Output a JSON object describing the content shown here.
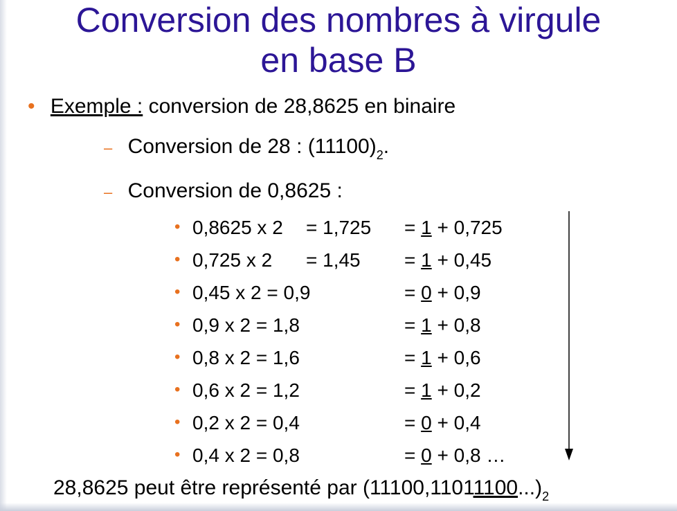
{
  "title": {
    "line1": "Conversion des nombres à virgule",
    "line2": "en base B"
  },
  "example": {
    "label": "Exemple :",
    "text": " conversion de 28,8625 en binaire"
  },
  "step1": {
    "text": "Conversion de 28 : (11100)",
    "sub": "2",
    "end": "."
  },
  "step2": {
    "text": "Conversion de 0,8625 :"
  },
  "rows": [
    {
      "left": "0,8625 x 2",
      "mid": "= 1,725",
      "eq": "= ",
      "bit": "1",
      "rest": " + 0,725"
    },
    {
      "left": "0,725 x 2",
      "mid": "= 1,45",
      "eq": "= ",
      "bit": "1",
      "rest": " + 0,45"
    },
    {
      "left": "0,45 x 2 = 0,9",
      "mid": "",
      "eq": "= ",
      "bit": "0",
      "rest": " + 0,9"
    },
    {
      "left": "0,9 x 2 = 1,8",
      "mid": "",
      "eq": "= ",
      "bit": "1",
      "rest": " + 0,8"
    },
    {
      "left": "0,8 x 2 = 1,6",
      "mid": "",
      "eq": "= ",
      "bit": "1",
      "rest": " + 0,6"
    },
    {
      "left": "0,6 x 2 = 1,2",
      "mid": "",
      "eq": "= ",
      "bit": "1",
      "rest": " + 0,2"
    },
    {
      "left": "0,2 x 2 = 0,4",
      "mid": "",
      "eq": "= ",
      "bit": "0",
      "rest": " + 0,4"
    },
    {
      "left": "0,4 x 2 = 0,8",
      "mid": "",
      "eq": "= ",
      "bit": "0",
      "rest": " + 0,8 …"
    }
  ],
  "conclusion": {
    "prefix": "28,8625 peut être représenté par (11100,1101",
    "underlined": "1100",
    "suffix": "...)",
    "sub": "2"
  },
  "colors": {
    "title": "#2c1696",
    "bullet": "#e8711f"
  }
}
